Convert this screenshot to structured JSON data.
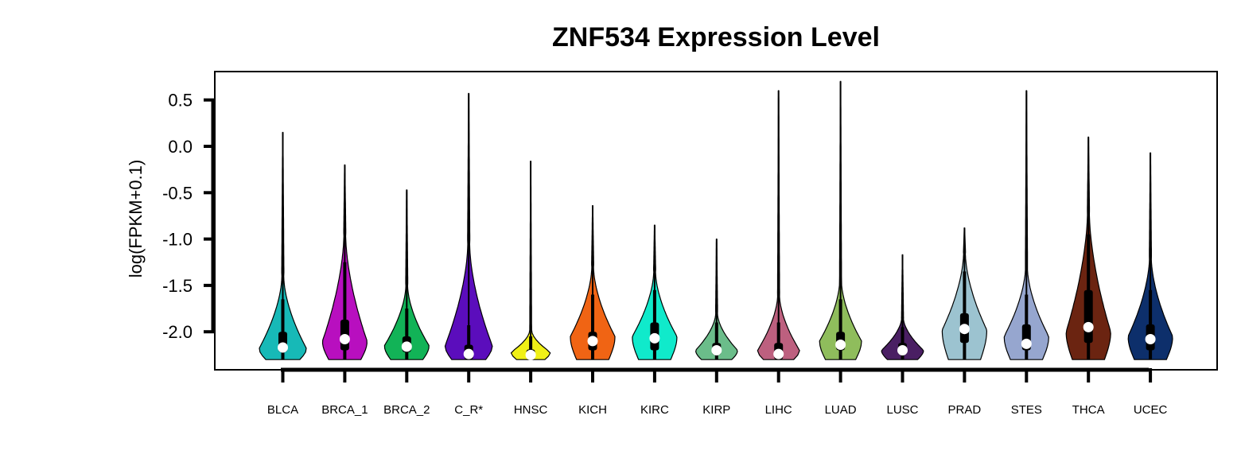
{
  "chart_data": {
    "type": "violin",
    "title": "ZNF534 Expression Level",
    "xlabel": "",
    "ylabel": "log(FPKM+0.1)",
    "ylim": [
      -2.42,
      0.8
    ],
    "yticks": [
      0.5,
      0.0,
      -0.5,
      -1.0,
      -1.5,
      -2.0
    ],
    "ytick_labels": [
      "0.5",
      "0.0",
      "-0.5",
      "-1.0",
      "-1.5",
      "-2.0"
    ],
    "grid": false,
    "categories": [
      "BLCA",
      "BRCA_1",
      "BRCA_2",
      "C_R*",
      "HNSC",
      "KICH",
      "KIRC",
      "KIRP",
      "LIHC",
      "LUAD",
      "LUSC",
      "PRAD",
      "STES",
      "THCA",
      "UCEC"
    ],
    "series": [
      {
        "category": "BLCA",
        "color": "#17b9b7",
        "min": -2.3,
        "max": 0.15,
        "q1": -2.22,
        "median": -2.17,
        "q3": -2.0,
        "whisker_low": -2.3,
        "whisker_high": -1.65,
        "density_top": -1.4,
        "peak": -2.18,
        "width": 0.9
      },
      {
        "category": "BRCA_1",
        "color": "#b80fbf",
        "min": -2.3,
        "max": -0.2,
        "q1": -2.2,
        "median": -2.08,
        "q3": -1.87,
        "whisker_low": -2.3,
        "whisker_high": -1.25,
        "density_top": -0.95,
        "peak": -2.1,
        "width": 0.85
      },
      {
        "category": "BRCA_2",
        "color": "#12b357",
        "min": -2.3,
        "max": -0.47,
        "q1": -2.22,
        "median": -2.16,
        "q3": -2.05,
        "whisker_low": -2.3,
        "whisker_high": -1.75,
        "density_top": -1.5,
        "peak": -2.15,
        "width": 0.85
      },
      {
        "category": "C_R*",
        "color": "#5b0dbc",
        "min": -2.3,
        "max": 0.57,
        "q1": -2.3,
        "median": -2.24,
        "q3": -2.14,
        "whisker_low": -2.3,
        "whisker_high": -1.93,
        "density_top": -1.05,
        "peak": -2.15,
        "width": 0.9
      },
      {
        "category": "HNSC",
        "color": "#f0f016",
        "min": -2.3,
        "max": -0.16,
        "q1": -2.27,
        "median": -2.25,
        "q3": -2.19,
        "whisker_low": -2.3,
        "whisker_high": -2.05,
        "density_top": -1.98,
        "peak": -2.22,
        "width": 0.75
      },
      {
        "category": "KICH",
        "color": "#f06414",
        "min": -2.3,
        "max": -0.64,
        "q1": -2.2,
        "median": -2.1,
        "q3": -2.0,
        "whisker_low": -2.3,
        "whisker_high": -1.6,
        "density_top": -1.3,
        "peak": -2.05,
        "width": 0.85
      },
      {
        "category": "KIRC",
        "color": "#10eacb",
        "min": -2.3,
        "max": -0.85,
        "q1": -2.2,
        "median": -2.07,
        "q3": -1.9,
        "whisker_low": -2.3,
        "whisker_high": -1.55,
        "density_top": -1.35,
        "peak": -2.05,
        "width": 0.85
      },
      {
        "category": "KIRP",
        "color": "#6bbd8a",
        "min": -2.3,
        "max": -1.0,
        "q1": -2.25,
        "median": -2.2,
        "q3": -2.12,
        "whisker_low": -2.3,
        "whisker_high": -1.9,
        "density_top": -1.8,
        "peak": -2.2,
        "width": 0.8
      },
      {
        "category": "LIHC",
        "color": "#bd607f",
        "min": -2.3,
        "max": 0.6,
        "q1": -2.3,
        "median": -2.24,
        "q3": -2.12,
        "whisker_low": -2.3,
        "whisker_high": -1.9,
        "density_top": -1.6,
        "peak": -2.2,
        "width": 0.8
      },
      {
        "category": "LUAD",
        "color": "#8fbd5c",
        "min": -2.3,
        "max": 0.7,
        "q1": -2.2,
        "median": -2.14,
        "q3": -2.0,
        "whisker_low": -2.3,
        "whisker_high": -1.65,
        "density_top": -1.45,
        "peak": -2.1,
        "width": 0.8
      },
      {
        "category": "LUSC",
        "color": "#4a1f63",
        "min": -2.3,
        "max": -1.17,
        "q1": -2.25,
        "median": -2.2,
        "q3": -2.12,
        "whisker_low": -2.3,
        "whisker_high": -1.95,
        "density_top": -1.85,
        "peak": -2.2,
        "width": 0.8
      },
      {
        "category": "PRAD",
        "color": "#9cc3d0",
        "min": -2.3,
        "max": -0.88,
        "q1": -2.12,
        "median": -1.97,
        "q3": -1.8,
        "whisker_low": -2.3,
        "whisker_high": -1.35,
        "density_top": -1.15,
        "peak": -1.98,
        "width": 0.85
      },
      {
        "category": "STES",
        "color": "#96a6cf",
        "min": -2.3,
        "max": 0.6,
        "q1": -2.2,
        "median": -2.13,
        "q3": -1.92,
        "whisker_low": -2.3,
        "whisker_high": -1.6,
        "density_top": -1.3,
        "peak": -2.05,
        "width": 0.85
      },
      {
        "category": "THCA",
        "color": "#6b2411",
        "min": -2.3,
        "max": 0.1,
        "q1": -2.12,
        "median": -1.95,
        "q3": -1.55,
        "whisker_low": -2.3,
        "whisker_high": -0.95,
        "density_top": -0.7,
        "peak": -2.0,
        "width": 0.85
      },
      {
        "category": "UCEC",
        "color": "#0d2f6b",
        "min": -2.3,
        "max": -0.07,
        "q1": -2.2,
        "median": -2.08,
        "q3": -1.92,
        "whisker_low": -2.3,
        "whisker_high": -1.55,
        "density_top": -1.2,
        "peak": -2.05,
        "width": 0.85
      }
    ]
  }
}
